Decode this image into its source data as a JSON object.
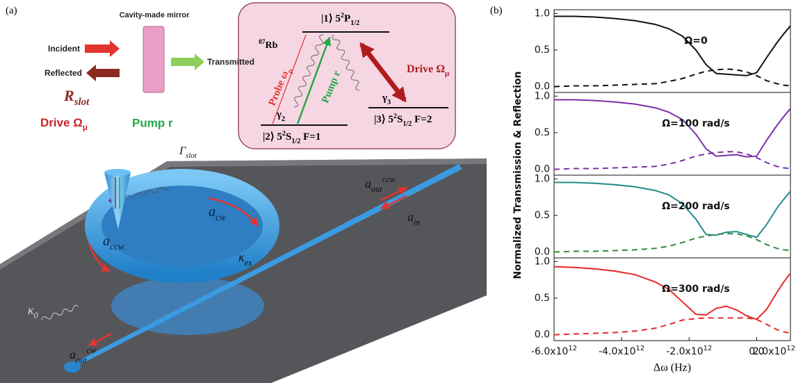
{
  "panel_a": {
    "label": "(a)",
    "mirror": "Cavity-made mirror",
    "incident": "Incident",
    "transmitted": "Transmitted",
    "reflected": "Reflected",
    "r_slot": {
      "main": "R",
      "sub": "slot"
    },
    "drive": {
      "main": "Drive Ω",
      "sub": "μ"
    },
    "pump": "Pump r",
    "gamma_slot": {
      "main": "Γ",
      "sub": "slot"
    },
    "a_cw": {
      "main": "a",
      "sub": "cw"
    },
    "a_ccw": {
      "main": "a",
      "sub": "ccw"
    },
    "kappa_ex": {
      "main": "κ",
      "sub": "ex"
    },
    "kappa_0": {
      "main": "κ",
      "sub": "0"
    },
    "a_out_ccw": {
      "main": "a",
      "sub": "out",
      "sup": "ccw"
    },
    "a_in": {
      "main": "a",
      "sub": "in"
    },
    "a_out_cw": {
      "main": "a",
      "sub": "out",
      "sup": "cw"
    },
    "inset": {
      "atom": {
        "sup": "87",
        "main": "Rb"
      },
      "level_1": {
        "ket": "|1⟩ 5",
        "sup": "2",
        "main": "P",
        "sub": "1/2"
      },
      "level_2": {
        "ket": "|2⟩ 5",
        "sup": "2",
        "main": "S",
        "sub": "1/2",
        "tail": " F=1"
      },
      "level_3": {
        "ket": "|3⟩ 5",
        "sup": "2",
        "main": "S",
        "sub": "1/2",
        "tail": " F=2"
      },
      "probe": {
        "main": "Probe ω",
        "sub": "p"
      },
      "pump": "Pump r",
      "drive": {
        "main": "Drive Ω",
        "sub": "μ"
      },
      "gamma_2": {
        "main": "γ",
        "sub": "2"
      },
      "gamma_3": {
        "main": "γ",
        "sub": "3"
      }
    }
  },
  "panel_b": {
    "label": "(b)",
    "ylabel": "Normalized Transmission & Reflection",
    "xlabel": "Δω (Hz)"
  },
  "chart_data": [
    {
      "type": "line",
      "annotation": "Ω=0",
      "x": [
        -6000000000000.0,
        -5400000000000.0,
        -4800000000000.0,
        -4200000000000.0,
        -3600000000000.0,
        -3000000000000.0,
        -2600000000000.0,
        -2200000000000.0,
        -1800000000000.0,
        -1500000000000.0,
        -1200000000000.0,
        -900000000000.0,
        -600000000000.0,
        -300000000000.0,
        0,
        300000000000.0,
        600000000000.0,
        800000000000.0,
        1000000000000.0
      ],
      "series": [
        {
          "color": "#111111",
          "dash": false,
          "values": [
            0.96,
            0.96,
            0.95,
            0.93,
            0.9,
            0.85,
            0.79,
            0.69,
            0.5,
            0.3,
            0.18,
            0.17,
            0.16,
            0.15,
            0.19,
            0.4,
            0.6,
            0.72,
            0.83
          ]
        },
        {
          "color": "#111111",
          "dash": true,
          "values": [
            0.0,
            0.01,
            0.01,
            0.02,
            0.03,
            0.04,
            0.07,
            0.11,
            0.17,
            0.21,
            0.23,
            0.24,
            0.23,
            0.2,
            0.15,
            0.08,
            0.04,
            0.02,
            0.01
          ]
        }
      ],
      "xlim": [
        -6000000000000.0,
        1000000000000.0
      ],
      "ylim": [
        -0.08,
        1.05
      ],
      "yticks": [
        {
          "value": 0,
          "label": "0.0"
        },
        {
          "value": 0.5,
          "label": "0.5"
        },
        {
          "value": 1,
          "label": "1.0"
        }
      ]
    },
    {
      "type": "line",
      "annotation": "Ω=100 rad/s",
      "x": [
        -6000000000000.0,
        -5400000000000.0,
        -4800000000000.0,
        -4200000000000.0,
        -3600000000000.0,
        -3000000000000.0,
        -2600000000000.0,
        -2200000000000.0,
        -1800000000000.0,
        -1500000000000.0,
        -1200000000000.0,
        -900000000000.0,
        -600000000000.0,
        -300000000000.0,
        0,
        300000000000.0,
        600000000000.0,
        800000000000.0,
        1000000000000.0
      ],
      "series": [
        {
          "color": "#7b2fa8",
          "dash": false,
          "values": [
            0.95,
            0.95,
            0.94,
            0.92,
            0.89,
            0.84,
            0.78,
            0.68,
            0.48,
            0.28,
            0.18,
            0.19,
            0.2,
            0.17,
            0.18,
            0.4,
            0.6,
            0.72,
            0.83
          ]
        },
        {
          "color": "#7b2fa8",
          "dash": true,
          "values": [
            0.0,
            0.01,
            0.01,
            0.02,
            0.03,
            0.04,
            0.07,
            0.12,
            0.18,
            0.21,
            0.23,
            0.24,
            0.24,
            0.21,
            0.16,
            0.09,
            0.04,
            0.02,
            0.01
          ]
        }
      ],
      "xlim": [
        -6000000000000.0,
        1000000000000.0
      ],
      "ylim": [
        -0.08,
        1.05
      ],
      "yticks": [
        {
          "value": 0,
          "label": "0.0"
        },
        {
          "value": 0.5,
          "label": "0.5"
        },
        {
          "value": 1,
          "label": "1.0"
        }
      ]
    },
    {
      "type": "line",
      "annotation": "Ω=200 rad/s",
      "x": [
        -6000000000000.0,
        -5400000000000.0,
        -4800000000000.0,
        -4200000000000.0,
        -3600000000000.0,
        -3000000000000.0,
        -2600000000000.0,
        -2200000000000.0,
        -1800000000000.0,
        -1500000000000.0,
        -1200000000000.0,
        -900000000000.0,
        -600000000000.0,
        -300000000000.0,
        0,
        300000000000.0,
        600000000000.0,
        800000000000.0,
        1000000000000.0
      ],
      "series": [
        {
          "color": "#1e8c8c",
          "dash": false,
          "values": [
            0.95,
            0.95,
            0.94,
            0.92,
            0.89,
            0.84,
            0.78,
            0.66,
            0.45,
            0.24,
            0.23,
            0.27,
            0.28,
            0.24,
            0.2,
            0.38,
            0.6,
            0.72,
            0.83
          ]
        },
        {
          "color": "#2e8b3a",
          "dash": true,
          "values": [
            0.0,
            0.01,
            0.01,
            0.02,
            0.03,
            0.05,
            0.08,
            0.13,
            0.19,
            0.22,
            0.24,
            0.25,
            0.25,
            0.22,
            0.17,
            0.1,
            0.05,
            0.03,
            0.02
          ]
        }
      ],
      "xlim": [
        -6000000000000.0,
        1000000000000.0
      ],
      "ylim": [
        -0.08,
        1.05
      ],
      "yticks": [
        {
          "value": 0,
          "label": "0.0"
        },
        {
          "value": 0.5,
          "label": "0.5"
        },
        {
          "value": 1,
          "label": "1.0"
        }
      ]
    },
    {
      "type": "line",
      "annotation": "Ω=300 rad/s",
      "x": [
        -6000000000000.0,
        -5400000000000.0,
        -4800000000000.0,
        -4200000000000.0,
        -3600000000000.0,
        -3000000000000.0,
        -2600000000000.0,
        -2200000000000.0,
        -1800000000000.0,
        -1500000000000.0,
        -1200000000000.0,
        -900000000000.0,
        -600000000000.0,
        -300000000000.0,
        0,
        300000000000.0,
        600000000000.0,
        800000000000.0,
        1000000000000.0
      ],
      "series": [
        {
          "color": "#e8282a",
          "dash": false,
          "values": [
            0.93,
            0.92,
            0.9,
            0.87,
            0.82,
            0.72,
            0.62,
            0.45,
            0.28,
            0.27,
            0.36,
            0.39,
            0.34,
            0.26,
            0.21,
            0.35,
            0.58,
            0.72,
            0.84
          ]
        },
        {
          "color": "#e8282a",
          "dash": true,
          "values": [
            0.0,
            0.01,
            0.02,
            0.03,
            0.05,
            0.09,
            0.14,
            0.2,
            0.22,
            0.23,
            0.23,
            0.23,
            0.23,
            0.23,
            0.21,
            0.14,
            0.07,
            0.04,
            0.02
          ]
        }
      ],
      "xlim": [
        -6000000000000.0,
        1000000000000.0
      ],
      "ylim": [
        -0.08,
        1.05
      ],
      "yticks": [
        {
          "value": 0,
          "label": "0.0"
        },
        {
          "value": 0.5,
          "label": "0.5"
        },
        {
          "value": 1,
          "label": "1.0"
        }
      ],
      "xticks": [
        {
          "value": -6000000000000.0,
          "label": "-6.0x10",
          "exponent": "12"
        },
        {
          "value": -4000000000000.0,
          "label": "-4.0x10",
          "exponent": "12"
        },
        {
          "value": -2000000000000.0,
          "label": "-2.0x10",
          "exponent": "12"
        },
        {
          "value": 0,
          "label": "0.0"
        },
        {
          "value": 2000000000000.0,
          "label": "2.0x10",
          "exponent": "12"
        }
      ]
    }
  ]
}
